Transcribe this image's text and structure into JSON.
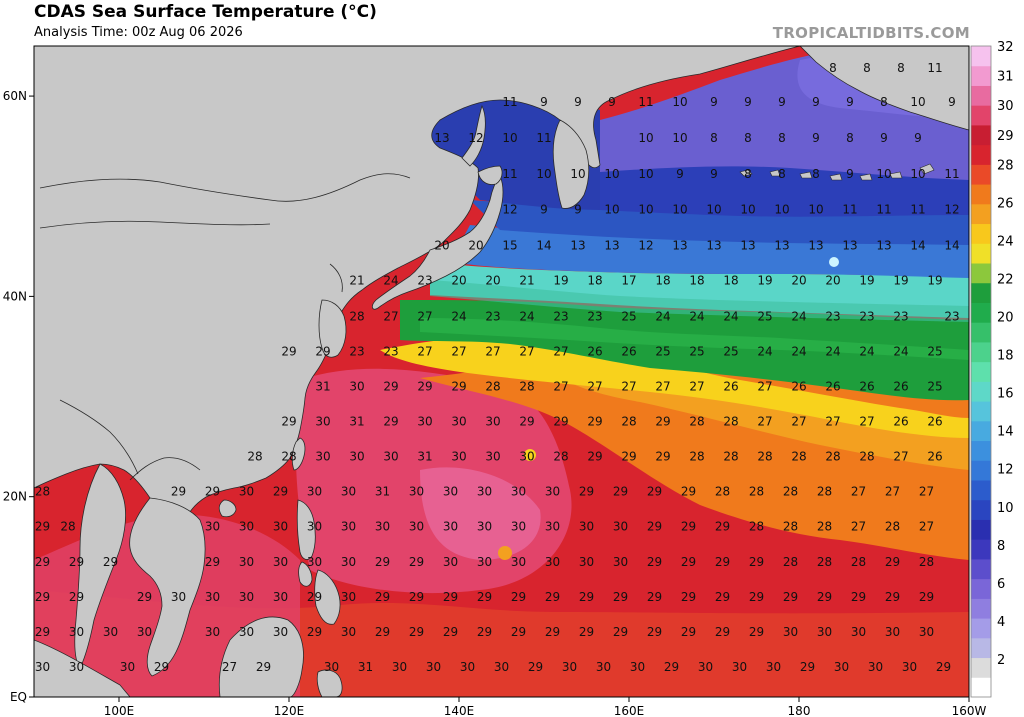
{
  "header": {
    "title": "CDAS Sea Surface Temperature (°C)",
    "subtitle": "Analysis Time: 00z Aug 06 2026",
    "credit": "TROPICALTIDBITS.COM"
  },
  "map": {
    "lon_range": [
      90,
      200
    ],
    "lat_range": [
      0,
      65
    ],
    "lon_ticks": [
      {
        "lon": 100,
        "label": "100E"
      },
      {
        "lon": 120,
        "label": "120E"
      },
      {
        "lon": 140,
        "label": "140E"
      },
      {
        "lon": 160,
        "label": "160E"
      },
      {
        "lon": 180,
        "label": "180"
      },
      {
        "lon": 200,
        "label": "160W"
      }
    ],
    "lat_ticks": [
      {
        "lat": 60,
        "label": "60N"
      },
      {
        "lat": 40,
        "label": "40N"
      },
      {
        "lat": 20,
        "label": "20N"
      },
      {
        "lat": 0,
        "label": "EQ"
      }
    ],
    "land_color": "#c8c8c8",
    "border_color": "#2a2a2a"
  },
  "colorbar": {
    "labels": [
      "2",
      "4",
      "6",
      "8",
      "10",
      "12",
      "14",
      "16",
      "18",
      "20",
      "22",
      "24",
      "26",
      "28",
      "29",
      "30",
      "31",
      "32"
    ]
  },
  "sst_rows": [
    {
      "lat": 62.8,
      "lons": [
        184,
        188,
        192,
        196
      ],
      "vals": [
        8,
        8,
        8,
        11
      ]
    },
    {
      "lat": 59.4,
      "lons": [
        146,
        150,
        154,
        158,
        162,
        166,
        170,
        174,
        178,
        182,
        186,
        190,
        194,
        198
      ],
      "vals": [
        11,
        9,
        9,
        9,
        11,
        10,
        9,
        9,
        9,
        9,
        9,
        8,
        10,
        9
      ]
    },
    {
      "lat": 55.8,
      "lons": [
        138,
        142,
        146,
        150,
        162,
        166,
        170,
        174,
        178,
        182,
        186,
        190,
        194
      ],
      "vals": [
        13,
        12,
        10,
        11,
        10,
        10,
        8,
        8,
        8,
        9,
        8,
        9,
        9
      ]
    },
    {
      "lat": 52.2,
      "lons": [
        146,
        150,
        154,
        158,
        162,
        166,
        170,
        174,
        178,
        182,
        186,
        190,
        194,
        198
      ],
      "vals": [
        11,
        10,
        10,
        10,
        10,
        9,
        9,
        8,
        8,
        8,
        9,
        10,
        10,
        11
      ]
    },
    {
      "lat": 48.7,
      "lons": [
        146,
        150,
        154,
        158,
        162,
        166,
        170,
        174,
        178,
        182,
        186,
        190,
        194,
        198
      ],
      "vals": [
        12,
        9,
        9,
        10,
        10,
        10,
        10,
        10,
        10,
        10,
        11,
        11,
        11,
        12
      ]
    },
    {
      "lat": 45.1,
      "lons": [
        138,
        142,
        146,
        150,
        154,
        158,
        162,
        166,
        170,
        174,
        178,
        182,
        186,
        190,
        194,
        198
      ],
      "vals": [
        20,
        20,
        15,
        14,
        13,
        13,
        12,
        13,
        13,
        13,
        13,
        13,
        13,
        13,
        14,
        14
      ]
    },
    {
      "lat": 41.6,
      "lons": [
        128,
        132,
        136,
        140,
        144,
        148,
        152,
        156,
        160,
        164,
        168,
        172,
        176,
        180,
        184,
        188,
        192,
        196
      ],
      "vals": [
        21,
        24,
        23,
        20,
        20,
        21,
        19,
        18,
        17,
        18,
        18,
        18,
        19,
        20,
        20,
        19,
        19,
        19
      ]
    },
    {
      "lat": 38.0,
      "lons": [
        128,
        132,
        136,
        140,
        144,
        148,
        152,
        156,
        160,
        164,
        168,
        172,
        176,
        180,
        184,
        188,
        192,
        198
      ],
      "vals": [
        28,
        27,
        27,
        24,
        23,
        24,
        23,
        23,
        25,
        24,
        24,
        24,
        25,
        24,
        23,
        23,
        23,
        23
      ]
    },
    {
      "lat": 34.5,
      "lons": [
        120,
        124,
        128,
        132,
        136,
        140,
        144,
        148,
        152,
        156,
        160,
        164,
        168,
        172,
        176,
        180,
        184,
        188,
        192,
        196
      ],
      "vals": [
        29,
        29,
        23,
        23,
        27,
        27,
        27,
        27,
        27,
        26,
        26,
        25,
        25,
        25,
        24,
        24,
        24,
        24,
        24,
        25
      ]
    },
    {
      "lat": 31.0,
      "lons": [
        124,
        128,
        132,
        136,
        140,
        144,
        148,
        152,
        156,
        160,
        164,
        168,
        172,
        176,
        180,
        184,
        188,
        192,
        196
      ],
      "vals": [
        31,
        30,
        29,
        29,
        29,
        28,
        28,
        27,
        27,
        27,
        27,
        27,
        26,
        27,
        26,
        26,
        26,
        26,
        25
      ]
    },
    {
      "lat": 27.5,
      "lons": [
        120,
        124,
        128,
        132,
        136,
        140,
        144,
        148,
        152,
        156,
        160,
        164,
        168,
        172,
        176,
        180,
        184,
        188,
        192,
        196
      ],
      "vals": [
        29,
        30,
        31,
        29,
        30,
        30,
        30,
        29,
        29,
        29,
        28,
        29,
        28,
        28,
        27,
        27,
        27,
        27,
        26,
        26
      ]
    },
    {
      "lat": 24.0,
      "lons": [
        116,
        120,
        124,
        128,
        132,
        136,
        140,
        144,
        148,
        152,
        156,
        160,
        164,
        168,
        172,
        176,
        180,
        184,
        188,
        192,
        196
      ],
      "vals": [
        28,
        28,
        30,
        30,
        30,
        31,
        30,
        30,
        30,
        28,
        29,
        29,
        29,
        28,
        28,
        28,
        28,
        28,
        28,
        27,
        26
      ]
    },
    {
      "lat": 20.5,
      "lons": [
        91,
        107,
        111,
        115,
        119,
        123,
        127,
        131,
        135,
        139,
        143,
        147,
        151,
        155,
        159,
        163,
        167,
        171,
        175,
        179,
        183,
        187,
        191,
        195
      ],
      "vals": [
        28,
        29,
        29,
        30,
        29,
        30,
        30,
        31,
        30,
        30,
        30,
        30,
        30,
        29,
        29,
        29,
        29,
        28,
        28,
        28,
        28,
        27,
        27,
        27
      ]
    },
    {
      "lat": 17.0,
      "lons": [
        91,
        94,
        111,
        115,
        119,
        123,
        127,
        131,
        135,
        139,
        143,
        147,
        151,
        155,
        159,
        163,
        167,
        171,
        175,
        179,
        183,
        187,
        191,
        195
      ],
      "vals": [
        29,
        28,
        30,
        30,
        30,
        30,
        30,
        30,
        30,
        30,
        30,
        30,
        30,
        30,
        30,
        29,
        29,
        29,
        28,
        28,
        28,
        27,
        28,
        27
      ]
    },
    {
      "lat": 13.5,
      "lons": [
        91,
        95,
        99,
        111,
        115,
        119,
        123,
        127,
        131,
        135,
        139,
        143,
        147,
        151,
        155,
        159,
        163,
        167,
        171,
        175,
        179,
        183,
        187,
        191,
        195
      ],
      "vals": [
        29,
        29,
        29,
        29,
        30,
        30,
        30,
        30,
        29,
        29,
        30,
        30,
        30,
        30,
        30,
        30,
        29,
        29,
        29,
        29,
        28,
        28,
        28,
        29,
        28
      ]
    },
    {
      "lat": 10.0,
      "lons": [
        91,
        95,
        103,
        107,
        111,
        115,
        119,
        123,
        127,
        131,
        135,
        139,
        143,
        147,
        151,
        155,
        159,
        163,
        167,
        171,
        175,
        179,
        183,
        187,
        191,
        195
      ],
      "vals": [
        29,
        29,
        29,
        30,
        30,
        30,
        30,
        29,
        30,
        29,
        29,
        29,
        29,
        29,
        29,
        29,
        29,
        29,
        29,
        29,
        29,
        29,
        29,
        29,
        29,
        29
      ]
    },
    {
      "lat": 6.5,
      "lons": [
        91,
        95,
        99,
        103,
        111,
        115,
        119,
        123,
        127,
        131,
        135,
        139,
        143,
        147,
        151,
        155,
        159,
        163,
        167,
        171,
        175,
        179,
        183,
        187,
        191,
        195
      ],
      "vals": [
        29,
        30,
        30,
        30,
        30,
        30,
        30,
        29,
        30,
        29,
        29,
        29,
        29,
        29,
        29,
        29,
        29,
        29,
        29,
        29,
        29,
        30,
        30,
        30,
        30,
        30
      ]
    },
    {
      "lat": 3.0,
      "lons": [
        91,
        95,
        101,
        105,
        113,
        117,
        125,
        129,
        133,
        137,
        141,
        145,
        149,
        153,
        157,
        161,
        165,
        169,
        173,
        177,
        181,
        185,
        189,
        193,
        197
      ],
      "vals": [
        30,
        30,
        30,
        29,
        27,
        29,
        30,
        31,
        30,
        30,
        30,
        30,
        29,
        30,
        30,
        30,
        29,
        30,
        30,
        30,
        29,
        30,
        30,
        30,
        29
      ]
    }
  ]
}
